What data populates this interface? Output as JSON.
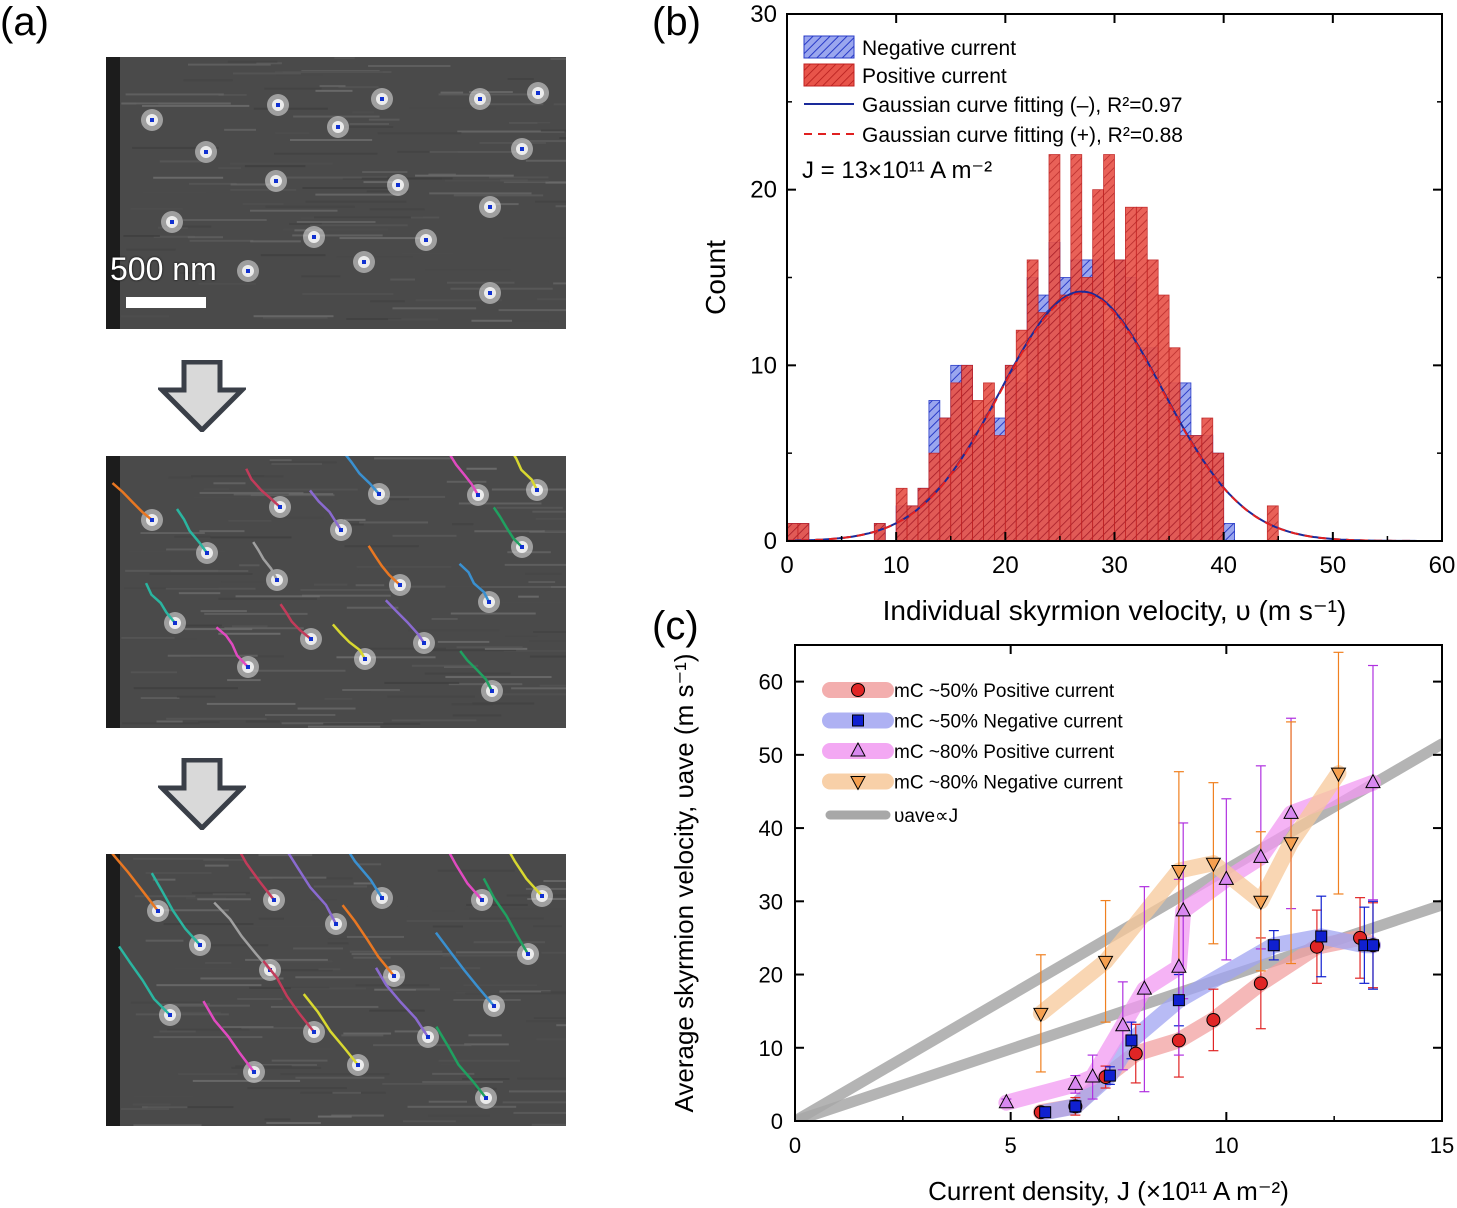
{
  "panels": {
    "a": {
      "label": "(a)",
      "scalebar_text": "500 nm"
    },
    "b": {
      "label": "(b)"
    },
    "c": {
      "label": "(c)"
    }
  },
  "chart_data": [
    {
      "id": "b",
      "type": "bar",
      "xlabel": "Individual skyrmion velocity, υ (m s⁻¹)",
      "ylabel": "Count",
      "xlim": [
        0,
        60
      ],
      "ylim": [
        0,
        30
      ],
      "xticks": [
        0,
        10,
        20,
        30,
        40,
        50,
        60
      ],
      "yticks": [
        0,
        10,
        20,
        30
      ],
      "annotation": "J = 13×10¹¹ A m⁻²",
      "legend_position": "top-left",
      "bin_start": 0,
      "bin_width": 1,
      "series": [
        {
          "name": "Negative current",
          "color": "#4a5ed8",
          "values": [
            1,
            1,
            0,
            0,
            0,
            0,
            0,
            0,
            1,
            0,
            2,
            2,
            3,
            8,
            7,
            10,
            10,
            6,
            7,
            7,
            10,
            9,
            15,
            14,
            17,
            15,
            16,
            16,
            16,
            12,
            16,
            15,
            11,
            11,
            8,
            9,
            9,
            6,
            6,
            5,
            1,
            0,
            0,
            0,
            0,
            0,
            0,
            0,
            0,
            0,
            0,
            0,
            0,
            0,
            0,
            0,
            0,
            0,
            0,
            0
          ]
        },
        {
          "name": "Positive current",
          "color": "#e03a3a",
          "values": [
            1,
            1,
            0,
            0,
            0,
            0,
            0,
            0,
            1,
            0,
            3,
            2,
            3,
            5,
            7,
            9,
            10,
            8,
            9,
            6,
            10,
            12,
            16,
            13,
            22,
            14,
            22,
            15,
            20,
            22,
            16,
            19,
            19,
            16,
            14,
            11,
            6,
            6,
            7,
            5,
            0,
            0,
            0,
            0,
            2,
            0,
            0,
            0,
            0,
            0,
            0,
            0,
            0,
            0,
            0,
            0,
            0,
            0,
            0,
            0
          ]
        },
        {
          "name": "Gaussian curve fitting (–), R²=0.97",
          "type": "line",
          "color": "#1a2a9a",
          "mean": 27,
          "sigma": 7.4,
          "amplitude": 14.2
        },
        {
          "name": "Gaussian curve fitting (+), R²=0.88",
          "type": "line",
          "dashed": true,
          "color": "#e02020",
          "mean": 27,
          "sigma": 7.4,
          "amplitude": 14.1
        }
      ]
    },
    {
      "id": "c",
      "type": "scatter",
      "xlabel": "Current density, J (×10¹¹ A m⁻²)",
      "ylabel": "Average skyrmion velocity, υave (m s⁻¹)",
      "xlim": [
        0,
        15
      ],
      "ylim": [
        0,
        65
      ],
      "xticks": [
        0,
        5,
        10,
        15
      ],
      "yticks": [
        0,
        10,
        20,
        30,
        40,
        50,
        60
      ],
      "legend_position": "top-left",
      "series": [
        {
          "name": "mC ~50% Positive current",
          "marker": "circle",
          "color": "#e02525",
          "band": "#f2a0a0",
          "x": [
            5.7,
            6.5,
            7.2,
            7.9,
            8.9,
            9.7,
            10.8,
            12.1,
            13.1,
            13.4
          ],
          "y": [
            1.2,
            2.0,
            6.0,
            9.2,
            11.0,
            13.8,
            18.8,
            23.8,
            25.0,
            24.0
          ],
          "err": [
            0.4,
            1.2,
            1.5,
            4,
            5,
            4.2,
            6.2,
            5,
            5.5,
            5.8
          ]
        },
        {
          "name": "mC ~50% Negative current",
          "marker": "square",
          "color": "#1020d0",
          "band": "#a0a4f2",
          "x": [
            5.8,
            6.5,
            7.3,
            7.8,
            8.9,
            11.1,
            12.2,
            13.2,
            13.4
          ],
          "y": [
            1.2,
            2.0,
            6.2,
            11.0,
            16.5,
            24.0,
            25.2,
            24.0,
            24.0
          ],
          "err": [
            0.4,
            0.8,
            1.2,
            2.5,
            3.5,
            2.0,
            5.5,
            5.2,
            6.0
          ]
        },
        {
          "name": "mC ~80% Positive current",
          "marker": "triangle-up",
          "color": "#b030e0",
          "band": "#f29af2",
          "x": [
            4.9,
            6.5,
            6.9,
            7.6,
            8.1,
            8.9,
            9.0,
            10.0,
            10.8,
            11.5,
            13.4
          ],
          "y": [
            2.5,
            5.0,
            6.0,
            13.0,
            18.0,
            21.0,
            28.7,
            33.0,
            36.0,
            42.0,
            46.2
          ],
          "err": [
            0.5,
            1.2,
            3,
            6,
            14,
            12,
            12,
            11,
            12.5,
            13,
            16
          ]
        },
        {
          "name": "mC ~80% Negative current",
          "marker": "triangle-down",
          "color": "#f08020",
          "band": "#f7c89a",
          "x": [
            5.7,
            7.2,
            8.9,
            9.7,
            10.8,
            11.5,
            12.6
          ],
          "y": [
            14.7,
            21.8,
            34.2,
            35.2,
            30.0,
            38.0,
            47.5
          ],
          "err": [
            8,
            8.3,
            13.5,
            11,
            9.5,
            16.5,
            16.5
          ]
        },
        {
          "name": "υave∝J",
          "type": "line",
          "color": "#a8a8a8",
          "lines": [
            {
              "x": [
                0,
                15
              ],
              "y": [
                0,
                51.5
              ]
            },
            {
              "x": [
                0,
                15
              ],
              "y": [
                0,
                29.5
              ]
            }
          ]
        }
      ]
    }
  ]
}
